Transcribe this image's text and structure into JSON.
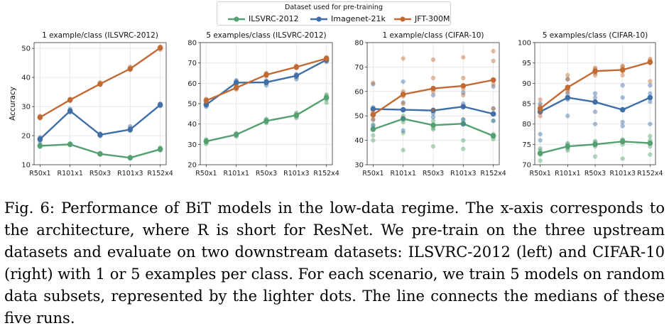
{
  "legend": {
    "title": "Dataset used for pre-training",
    "entries": [
      {
        "name": "ILSVRC-2012",
        "color": "#55a070"
      },
      {
        "name": "Imagenet-21k",
        "color": "#3f6fa6"
      },
      {
        "name": "JFT-300M",
        "color": "#c26a34"
      }
    ]
  },
  "caption": "Fig. 6: Performance of BiT models in the low-data regime. The x-axis corresponds to the architecture, where R is short for ResNet. We pre-train on the three upstream datasets and evaluate on two downstream datasets: ILSVRC-2012 (left) and CIFAR-10 (right) with 1 or 5 examples per class. For each scenario, we train 5 models on random data subsets, represented by the lighter dots. The line connects the medians of these five runs.",
  "chart_data": [
    {
      "type": "line",
      "title": "1 example/class (ILSVRC-2012)",
      "ylabel": "Accuracy",
      "categories": [
        "R50x1",
        "R101x1",
        "R50x3",
        "R101x3",
        "R152x4"
      ],
      "ylim": [
        10,
        52
      ],
      "yticks": [
        10,
        20,
        30,
        40,
        50
      ],
      "grid": true,
      "series": [
        {
          "name": "ILSVRC-2012",
          "values": [
            16.5,
            17.0,
            13.7,
            12.4,
            15.3
          ],
          "runs": [
            [
              16.2,
              16.6,
              16.9,
              16.4,
              16.5
            ],
            [
              16.8,
              17.3,
              17.0,
              16.9,
              17.2
            ],
            [
              13.5,
              13.9,
              13.6,
              14.0,
              13.7
            ],
            [
              12.2,
              12.6,
              12.4,
              12.5,
              12.3
            ],
            [
              15.0,
              15.6,
              15.3,
              15.9,
              15.1
            ]
          ]
        },
        {
          "name": "Imagenet-21k",
          "values": [
            18.8,
            28.5,
            20.3,
            22.1,
            30.6
          ],
          "runs": [
            [
              18.0,
              19.4,
              18.8,
              19.1,
              18.5
            ],
            [
              28.0,
              29.2,
              28.5,
              28.3,
              28.8
            ],
            [
              19.9,
              20.7,
              20.3,
              20.1,
              20.5
            ],
            [
              21.7,
              22.6,
              23.2,
              22.1,
              22.0
            ],
            [
              30.2,
              31.0,
              30.6,
              30.4,
              30.8
            ]
          ]
        },
        {
          "name": "JFT-300M",
          "values": [
            26.3,
            32.3,
            37.8,
            43.0,
            50.2
          ],
          "runs": [
            [
              26.0,
              26.8,
              26.3,
              26.5,
              26.1
            ],
            [
              32.0,
              32.6,
              32.3,
              32.4,
              32.1
            ],
            [
              37.5,
              38.3,
              37.8,
              37.9,
              37.6
            ],
            [
              42.6,
              43.7,
              43.0,
              43.2,
              42.8
            ],
            [
              49.6,
              50.6,
              50.2,
              50.0,
              50.4
            ]
          ]
        }
      ]
    },
    {
      "type": "line",
      "title": "5 examples/class (ILSVRC-2012)",
      "ylabel": "",
      "categories": [
        "R50x1",
        "R101x1",
        "R50x3",
        "R101x3",
        "R152x4"
      ],
      "ylim": [
        20,
        80
      ],
      "yticks": [
        20,
        30,
        40,
        50,
        60,
        70,
        80
      ],
      "grid": true,
      "series": [
        {
          "name": "ILSVRC-2012",
          "values": [
            31.5,
            34.8,
            41.5,
            44.3,
            53.0
          ],
          "runs": [
            [
              30.2,
              32.0,
              31.5,
              31.0,
              32.4
            ],
            [
              34.0,
              35.5,
              34.8,
              35.1,
              34.2
            ],
            [
              40.5,
              42.5,
              41.5,
              41.0,
              42.0
            ],
            [
              43.0,
              45.5,
              44.3,
              44.8,
              43.5
            ],
            [
              50.5,
              54.5,
              53.0,
              52.0,
              53.8
            ]
          ]
        },
        {
          "name": "Imagenet-21k",
          "values": [
            49.5,
            60.3,
            60.5,
            63.7,
            71.5
          ],
          "runs": [
            [
              48.5,
              50.0,
              49.5,
              49.2,
              50.3
            ],
            [
              59.0,
              61.5,
              60.3,
              60.0,
              61.0
            ],
            [
              59.0,
              61.0,
              60.5,
              60.0,
              61.3
            ],
            [
              62.0,
              64.5,
              63.7,
              63.0,
              64.0
            ],
            [
              70.5,
              72.0,
              71.5,
              71.0,
              72.3
            ]
          ]
        },
        {
          "name": "JFT-300M",
          "values": [
            51.5,
            57.8,
            64.2,
            68.0,
            72.2
          ],
          "runs": [
            [
              51.0,
              52.0,
              51.5,
              51.3,
              52.3
            ],
            [
              57.0,
              58.5,
              57.8,
              57.5,
              58.2
            ],
            [
              63.5,
              65.0,
              64.2,
              64.0,
              64.7
            ],
            [
              67.5,
              68.6,
              68.0,
              67.8,
              68.3
            ],
            [
              71.5,
              72.8,
              72.2,
              72.0,
              72.5
            ]
          ]
        }
      ]
    },
    {
      "type": "line",
      "title": "1 example/class (CIFAR-10)",
      "ylabel": "",
      "categories": [
        "R50x1",
        "R101x1",
        "R50x3",
        "R101x3",
        "R152x4"
      ],
      "ylim": [
        30,
        80
      ],
      "yticks": [
        30,
        40,
        50,
        60,
        70,
        80
      ],
      "grid": true,
      "series": [
        {
          "name": "ILSVRC-2012",
          "values": [
            44.5,
            48.8,
            46.2,
            46.8,
            41.8
          ],
          "runs": [
            [
              40.0,
              42.0,
              44.5,
              45.0,
              46.5
            ],
            [
              36.0,
              43.0,
              48.8,
              50.0,
              47.5
            ],
            [
              37.5,
              44.5,
              46.2,
              48.0,
              45.0
            ],
            [
              36.5,
              40.0,
              46.8,
              48.5,
              47.0
            ],
            [
              40.5,
              41.5,
              41.8,
              42.5,
              48.0
            ]
          ]
        },
        {
          "name": "Imagenet-21k",
          "values": [
            52.8,
            52.5,
            52.2,
            53.8,
            50.8
          ],
          "runs": [
            [
              46.0,
              48.5,
              52.8,
              53.5,
              63.0
            ],
            [
              44.0,
              49.0,
              52.5,
              55.5,
              64.0
            ],
            [
              49.5,
              51.0,
              52.2,
              52.5,
              58.5
            ],
            [
              46.5,
              48.5,
              53.8,
              55.0,
              59.5
            ],
            [
              48.0,
              51.0,
              50.8,
              53.0,
              62.0
            ]
          ]
        },
        {
          "name": "JFT-300M",
          "values": [
            50.5,
            58.8,
            61.2,
            62.3,
            64.7
          ],
          "runs": [
            [
              48.5,
              50.0,
              50.5,
              51.5,
              63.5
            ],
            [
              55.0,
              58.0,
              58.8,
              60.0,
              73.5
            ],
            [
              52.5,
              60.0,
              61.2,
              65.5,
              73.0
            ],
            [
              58.5,
              61.0,
              62.3,
              65.5,
              74.0
            ],
            [
              53.0,
              63.0,
              64.7,
              72.5,
              76.5
            ]
          ]
        }
      ]
    },
    {
      "type": "line",
      "title": "5 examples/class (CIFAR-10)",
      "ylabel": "",
      "categories": [
        "R50x1",
        "R101x1",
        "R50x3",
        "R101x3",
        "R152x4"
      ],
      "ylim": [
        70,
        100
      ],
      "yticks": [
        70,
        75,
        80,
        85,
        90,
        95,
        100
      ],
      "grid": true,
      "series": [
        {
          "name": "ILSVRC-2012",
          "values": [
            72.8,
            74.5,
            75.0,
            75.7,
            75.3
          ],
          "runs": [
            [
              71.0,
              72.5,
              72.8,
              73.5,
              74.0
            ],
            [
              73.5,
              74.0,
              74.5,
              75.0,
              75.3
            ],
            [
              72.0,
              74.5,
              75.0,
              75.5,
              75.8
            ],
            [
              71.5,
              75.0,
              75.7,
              76.0,
              76.2
            ],
            [
              72.5,
              74.5,
              75.3,
              76.0,
              77.0
            ]
          ]
        },
        {
          "name": "Imagenet-21k",
          "values": [
            83.0,
            86.5,
            85.4,
            83.5,
            86.5
          ],
          "runs": [
            [
              76.0,
              77.5,
              83.0,
              84.0,
              85.0
            ],
            [
              82.0,
              86.0,
              86.5,
              87.5,
              91.0
            ],
            [
              80.0,
              83.0,
              85.4,
              86.5,
              87.5
            ],
            [
              79.5,
              80.5,
              83.5,
              86.5,
              89.5
            ],
            [
              80.0,
              85.5,
              86.5,
              87.5,
              89.5
            ]
          ]
        },
        {
          "name": "JFT-300M",
          "values": [
            83.8,
            89.0,
            93.0,
            93.3,
            95.2
          ],
          "runs": [
            [
              82.0,
              83.0,
              83.8,
              84.5,
              86.0
            ],
            [
              88.0,
              88.5,
              89.0,
              91.0,
              92.0
            ],
            [
              92.0,
              92.5,
              93.0,
              93.5,
              93.8
            ],
            [
              92.0,
              93.0,
              93.3,
              94.0,
              94.3
            ],
            [
              90.5,
              95.0,
              95.2,
              95.6,
              96.0
            ]
          ]
        }
      ]
    }
  ]
}
